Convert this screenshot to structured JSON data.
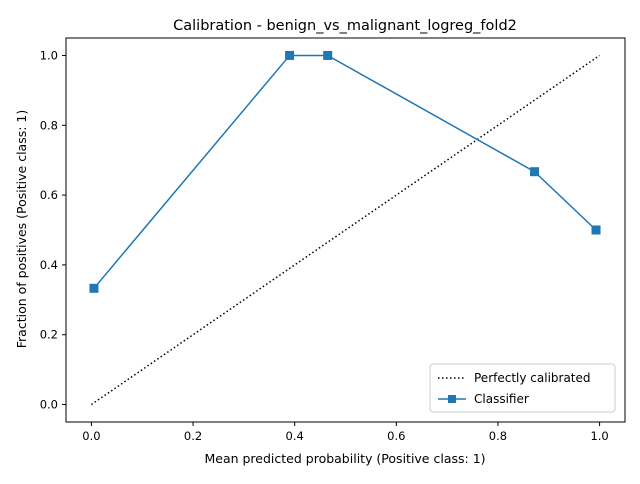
{
  "chart_data": {
    "type": "line",
    "title": "Calibration - benign_vs_malignant_logreg_fold2",
    "xlabel": "Mean predicted probability (Positive class: 1)",
    "ylabel": "Fraction of positives (Positive class: 1)",
    "xlim": [
      -0.05,
      1.05
    ],
    "ylim": [
      -0.05,
      1.05
    ],
    "xticks": [
      0.0,
      0.2,
      0.4,
      0.6,
      0.8,
      1.0
    ],
    "xtick_labels": [
      "0.0",
      "0.2",
      "0.4",
      "0.6",
      "0.8",
      "1.0"
    ],
    "yticks": [
      0.0,
      0.2,
      0.4,
      0.6,
      0.8,
      1.0
    ],
    "ytick_labels": [
      "0.0",
      "0.2",
      "0.4",
      "0.6",
      "0.8",
      "1.0"
    ],
    "grid": false,
    "legend_position": "lower-right",
    "series": [
      {
        "name": "Perfectly calibrated",
        "style": "dotted",
        "color": "#000000",
        "marker": "none",
        "x": [
          0.0,
          1.0
        ],
        "y": [
          0.0,
          1.0
        ]
      },
      {
        "name": "Classifier",
        "style": "solid",
        "color": "#1f77b4",
        "marker": "square",
        "x": [
          0.005,
          0.39,
          0.465,
          0.872,
          0.993
        ],
        "y": [
          0.333,
          1.0,
          1.0,
          0.667,
          0.5
        ]
      }
    ]
  }
}
